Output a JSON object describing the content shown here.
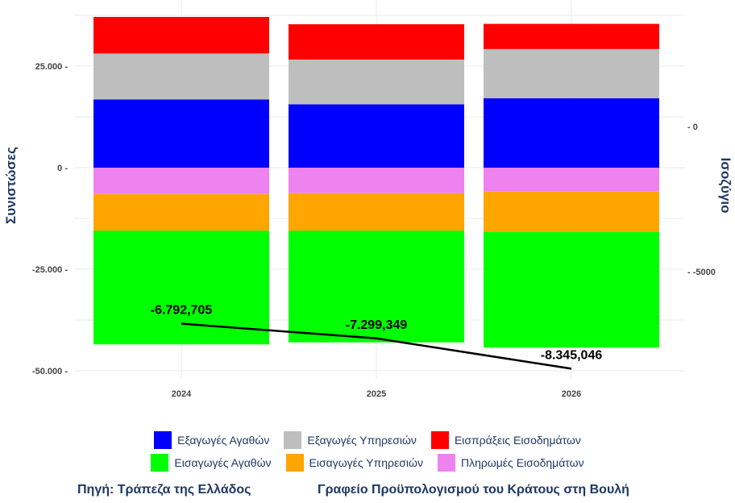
{
  "chart_data": {
    "type": "bar",
    "stacked": true,
    "categories": [
      "2024",
      "2025",
      "2026"
    ],
    "ylabel": "Συνιστώσες",
    "y2label": "Ισοζύγιο",
    "ylim": [
      -52000,
      37000
    ],
    "yticks": [
      25000,
      0,
      -25000,
      -50000
    ],
    "ytick_labels": [
      "25.000 -",
      "0 -",
      "-25.000 -",
      "-50.000 -"
    ],
    "y2ticks": [
      0,
      -5000
    ],
    "y2tick_labels": [
      "- 0",
      "- -5000"
    ],
    "series": [
      {
        "name": "Εξαγωγές Αγαθών",
        "color": "#0000ff",
        "values": [
          16800,
          15600,
          17100
        ]
      },
      {
        "name": "Εξαγωγές Υπηρεσιών",
        "color": "#bebebe",
        "values": [
          11300,
          11000,
          12100
        ]
      },
      {
        "name": "Εισπράξεις Εισοδημάτων",
        "color": "#ff0000",
        "values": [
          9000,
          8700,
          6200
        ]
      },
      {
        "name": "Πληρωμές Εισοδημάτων",
        "color": "#ee82ee",
        "values": [
          -6500,
          -6300,
          -5800
        ]
      },
      {
        "name": "Εισαγωγές Υπηρεσιών",
        "color": "#ffa500",
        "values": [
          -9000,
          -9200,
          -10000
        ]
      },
      {
        "name": "Εισαγωγές Αγαθών",
        "color": "#00ff00",
        "values": [
          -28000,
          -27500,
          -28500
        ]
      }
    ],
    "balance": {
      "values": [
        -6792.705,
        -7299.349,
        -8345.046
      ],
      "labels": [
        "-6.792,705",
        "-7.299,349",
        "-8.345,046"
      ]
    }
  },
  "legend": {
    "row1": [
      {
        "label": "Εξαγωγές Αγαθών",
        "color": "#0000ff"
      },
      {
        "label": "Εξαγωγές Υπηρεσιών",
        "color": "#bebebe"
      },
      {
        "label": "Εισπράξεις Εισοδημάτων",
        "color": "#ff0000"
      }
    ],
    "row2": [
      {
        "label": "Εισαγωγές Αγαθών",
        "color": "#00ff00"
      },
      {
        "label": "Εισαγωγές Υπηρεσιών",
        "color": "#ffa500"
      },
      {
        "label": "Πληρωμές Εισοδημάτων",
        "color": "#ee82ee"
      }
    ]
  },
  "footer": {
    "source_left": "Πηγή: Τράπεζα της Ελλάδος",
    "source_right": "Γραφείο Προϋπολογισμού του Κράτους στη Βουλή"
  }
}
